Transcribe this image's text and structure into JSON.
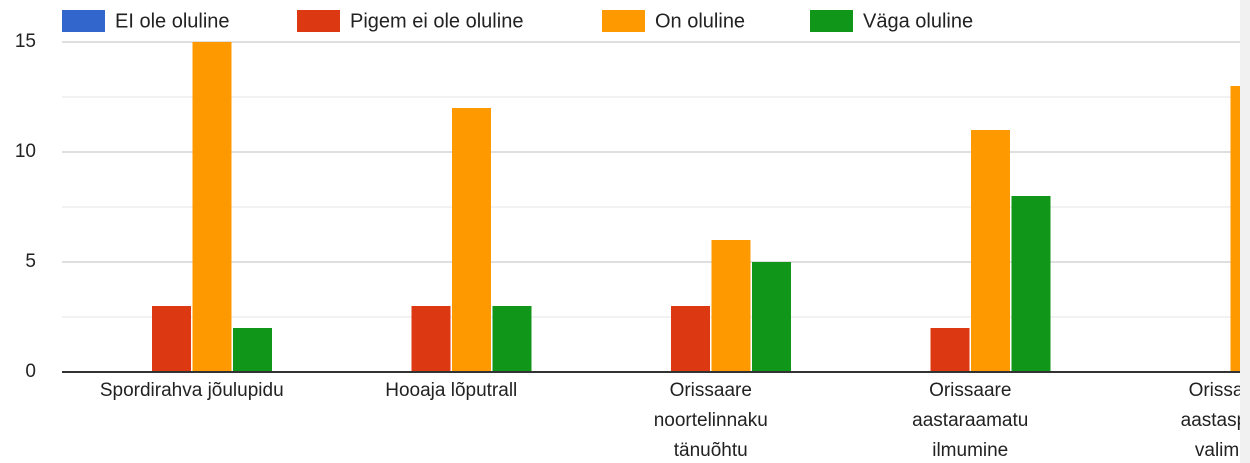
{
  "chart_data": {
    "type": "bar",
    "categories": [
      [
        "Spordirahva jõulupidu"
      ],
      [
        "Hooaja lõputrall"
      ],
      [
        "Orissaare",
        "noortelinnaku",
        "tänuõhtu"
      ],
      [
        "Orissaare",
        "aastaraamatu",
        "ilmumine"
      ],
      [
        "Orissaare",
        "aastaspordi",
        "valimine"
      ]
    ],
    "series": [
      {
        "name": "EI ole oluline",
        "color": "#3366cc",
        "values": [
          0,
          0,
          0,
          0,
          null
        ]
      },
      {
        "name": "Pigem ei ole oluline",
        "color": "#dc3912",
        "values": [
          3,
          3,
          3,
          2,
          null
        ]
      },
      {
        "name": "On oluline",
        "color": "#ff9900",
        "values": [
          15,
          12,
          6,
          11,
          13
        ]
      },
      {
        "name": "Väga oluline",
        "color": "#109618",
        "values": [
          2,
          3,
          5,
          8,
          null
        ]
      }
    ],
    "ylim": [
      0,
      15
    ],
    "yticks": [
      0,
      5,
      10,
      15
    ],
    "minor_yticks": [
      2.5,
      7.5,
      12.5
    ],
    "grid": true,
    "legend": "top"
  }
}
